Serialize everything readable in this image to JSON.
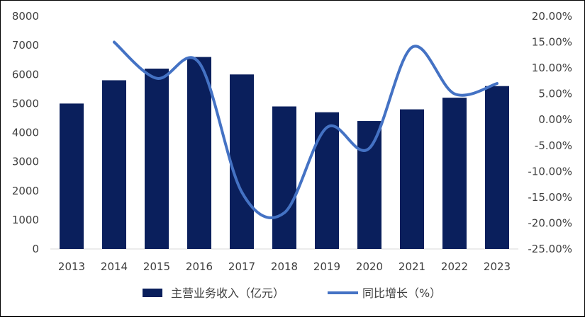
{
  "chart_data": {
    "type": "bar+line",
    "title": "",
    "categories": [
      "2013",
      "2014",
      "2015",
      "2016",
      "2017",
      "2018",
      "2019",
      "2020",
      "2021",
      "2022",
      "2023"
    ],
    "series": [
      {
        "name": "主营业务收入（亿元）",
        "type": "bar",
        "axis": "left",
        "color": "#0a1f5c",
        "values": [
          5000,
          5800,
          6200,
          6600,
          6000,
          4900,
          4700,
          4400,
          4800,
          5200,
          5600
        ]
      },
      {
        "name": "同比增长（%）",
        "type": "line",
        "axis": "right",
        "color": "#4472c4",
        "values": [
          null,
          15.0,
          8.0,
          11.0,
          -14.0,
          -18.0,
          -1.5,
          -5.5,
          14.0,
          5.0,
          7.0
        ]
      }
    ],
    "y_left": {
      "min": 0,
      "max": 8000,
      "ticks": [
        "0",
        "1000",
        "2000",
        "3000",
        "4000",
        "5000",
        "6000",
        "7000",
        "8000"
      ]
    },
    "y_right": {
      "min": -25,
      "max": 20,
      "ticks": [
        "-25.00%",
        "-20.00%",
        "-15.00%",
        "-10.00%",
        "-5.00%",
        "0.00%",
        "5.00%",
        "10.00%",
        "15.00%",
        "20.00%"
      ]
    },
    "grid": false,
    "legend_position": "bottom"
  }
}
